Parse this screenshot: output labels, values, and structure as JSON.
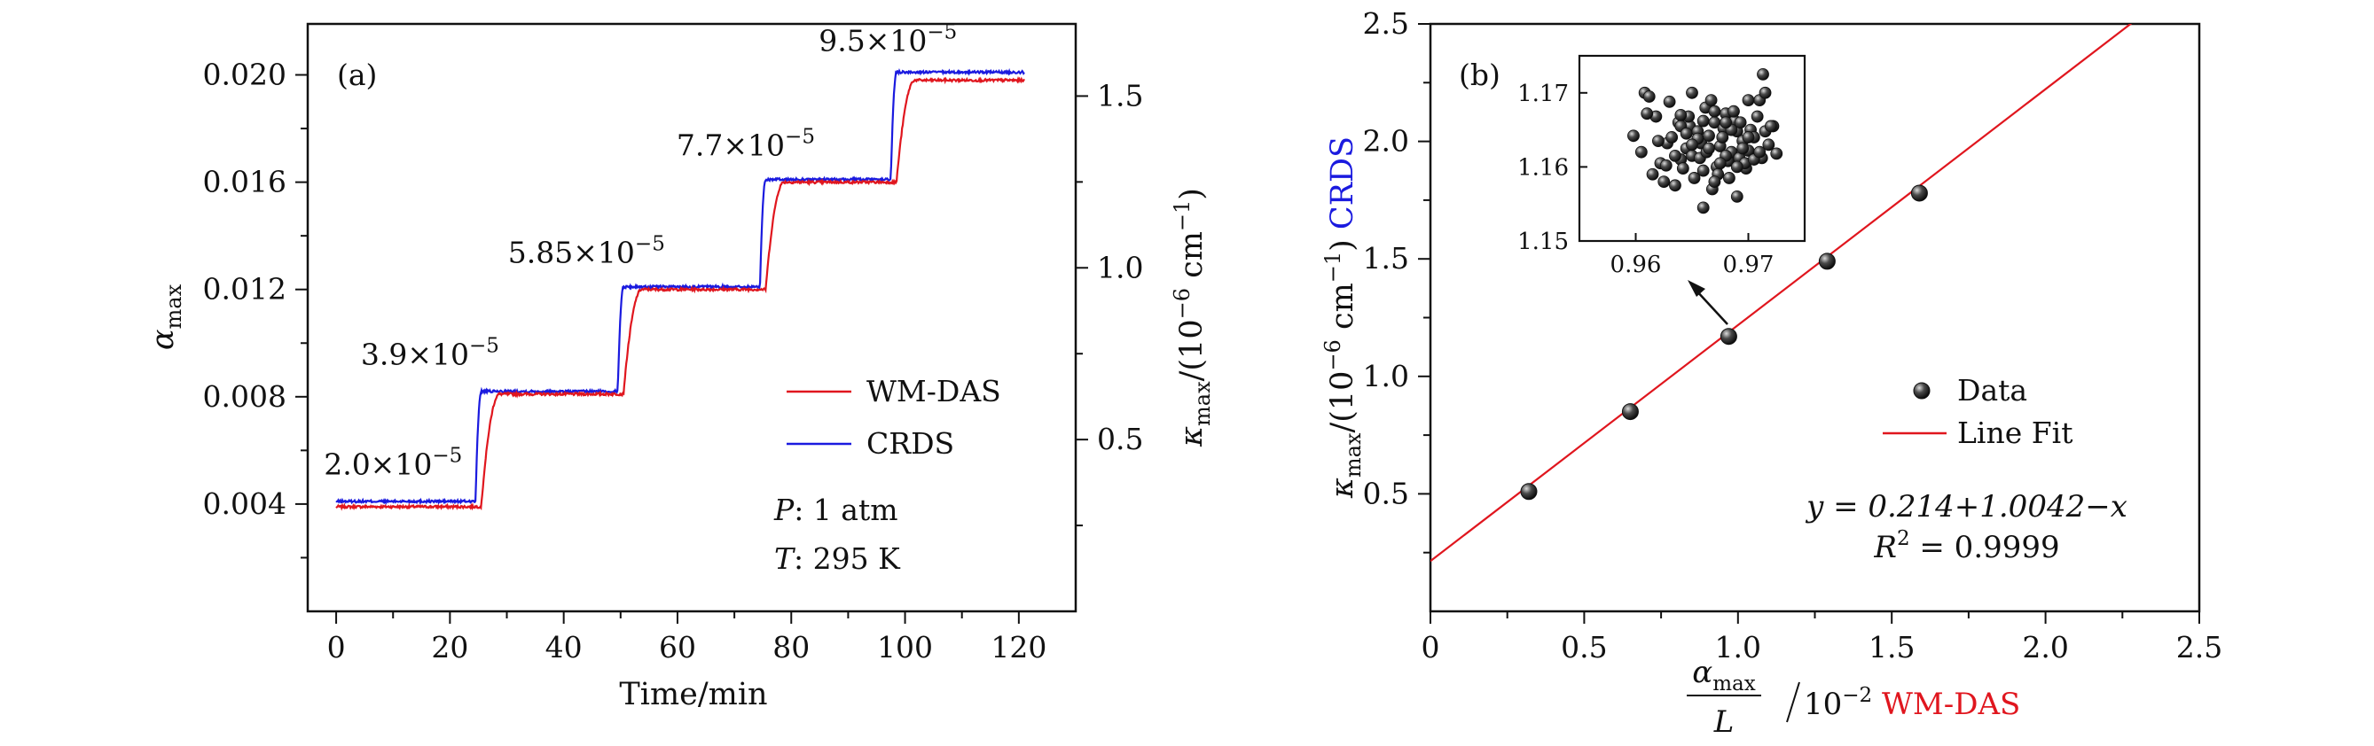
{
  "colors": {
    "red": "#e0161e",
    "blue": "#1a1adf",
    "axis": "#111111",
    "point": "#2b2b2b"
  },
  "chart_data": [
    {
      "type": "line",
      "panel_label": "(a)",
      "xlabel": "Time/min",
      "ylabel_left": {
        "base": "α",
        "sub": "max"
      },
      "ylabel_right": {
        "base": "κ",
        "sub": "max",
        "rest": "/(10",
        "exp": "−6",
        "unit": " cm",
        "unit_exp": "−1",
        "close": ")"
      },
      "xlim": [
        -5,
        130
      ],
      "ylim_left": [
        0.0,
        0.0219
      ],
      "ylim_right": [
        0.0,
        1.71
      ],
      "xticks": [
        0,
        20,
        40,
        60,
        80,
        100,
        120
      ],
      "yticks_left": [
        0.004,
        0.008,
        0.012,
        0.016,
        0.02
      ],
      "yticks_left_labels": [
        "0.004",
        "0.008",
        "0.012",
        "0.016",
        "0.020"
      ],
      "yticks_right": [
        0.5,
        1.0,
        1.5
      ],
      "yticks_right_labels": [
        "0.5",
        "1.0",
        "1.5"
      ],
      "series": [
        {
          "name": "WM-DAS",
          "color_key": "red",
          "axis": "left",
          "step_times": [
            25.5,
            50.5,
            75.5,
            98.5
          ],
          "rise_time": 3.2,
          "levels": [
            0.0039,
            0.0081,
            0.012,
            0.016,
            0.0198
          ]
        },
        {
          "name": "CRDS",
          "color_key": "blue",
          "axis": "left",
          "step_times": [
            24.5,
            49.5,
            74.5,
            97.5
          ],
          "rise_time": 1.0,
          "levels": [
            0.0041,
            0.0082,
            0.0121,
            0.0161,
            0.0201
          ]
        }
      ],
      "x_end": 121,
      "annotations": [
        {
          "mant": "2.0",
          "exp": "−5",
          "x": 10,
          "y": 0.0051
        },
        {
          "mant": "3.9",
          "exp": "−5",
          "x": 16.5,
          "y": 0.0092
        },
        {
          "mant": "5.85",
          "exp": "−5",
          "x": 44,
          "y": 0.013
        },
        {
          "mant": "7.7",
          "exp": "−5",
          "x": 72,
          "y": 0.017
        },
        {
          "mant": "9.5",
          "exp": "−5",
          "x": 97,
          "y": 0.0209
        }
      ],
      "legend_placement": "right",
      "conditions": [
        {
          "sym": "P",
          "text": ": 1 atm"
        },
        {
          "sym": "T",
          "text": ": 295 K"
        }
      ]
    },
    {
      "type": "scatter",
      "panel_label": "(b)",
      "xlabel": {
        "num_base": "α",
        "num_sub": "max",
        "den": "L",
        "rest": "/10",
        "exp": "−2",
        "method": "WM-DAS"
      },
      "ylabel": {
        "base": "κ",
        "sub": "max",
        "rest": "/(10",
        "exp": "−6",
        "unit": " cm",
        "unit_exp": "−1",
        "close": ")",
        "method": "CRDS"
      },
      "xlim": [
        0,
        2.5
      ],
      "ylim": [
        0,
        2.5
      ],
      "xticks": [
        0,
        0.5,
        1.0,
        1.5,
        2.0,
        2.5
      ],
      "xtick_labels": [
        "0",
        "0.5",
        "1.0",
        "1.5",
        "2.0",
        "2.5"
      ],
      "yticks": [
        0.5,
        1.0,
        1.5,
        2.0,
        2.5
      ],
      "ytick_labels": [
        "0.5",
        "1.0",
        "1.5",
        "2.0",
        "2.5"
      ],
      "series": [
        {
          "name": "Data",
          "x": [
            0.32,
            0.65,
            0.97,
            1.29,
            1.59
          ],
          "y": [
            0.51,
            0.85,
            1.17,
            1.49,
            1.78
          ]
        }
      ],
      "fit": {
        "name": "Line Fit",
        "intercept": 0.214,
        "slope": 1.0042
      },
      "equation": "y = 0.214+1.0042−x",
      "r2": {
        "base": "R",
        "exp": "2",
        "rest": " = 0.9999"
      },
      "legend_placement": "right",
      "inset": {
        "xlim": [
          0.955,
          0.975
        ],
        "ylim": [
          1.15,
          1.175
        ],
        "xticks": [
          0.96,
          0.97
        ],
        "xtick_labels": [
          "0.96",
          "0.97"
        ],
        "yticks": [
          1.15,
          1.16,
          1.17
        ],
        "ytick_labels": [
          "1.15",
          "1.16",
          "1.17"
        ],
        "x": [
          0.9598,
          0.9608,
          0.9612,
          0.9605,
          0.9622,
          0.9618,
          0.9625,
          0.9615,
          0.9628,
          0.961,
          0.9632,
          0.9635,
          0.964,
          0.9638,
          0.9645,
          0.9642,
          0.963,
          0.9627,
          0.9648,
          0.965,
          0.9652,
          0.9655,
          0.9647,
          0.9658,
          0.966,
          0.9662,
          0.9657,
          0.9665,
          0.9668,
          0.9663,
          0.967,
          0.9672,
          0.9667,
          0.9675,
          0.9678,
          0.9673,
          0.968,
          0.9682,
          0.9677,
          0.9685,
          0.9688,
          0.9683,
          0.969,
          0.9692,
          0.9687,
          0.9695,
          0.9698,
          0.9693,
          0.97,
          0.9702,
          0.9697,
          0.9705,
          0.9708,
          0.9712,
          0.9715,
          0.971,
          0.9718,
          0.9722,
          0.9725,
          0.9713,
          0.966,
          0.965,
          0.964,
          0.967,
          0.968,
          0.969,
          0.97,
          0.9655,
          0.9665,
          0.9675,
          0.9685,
          0.9695,
          0.9635,
          0.9645,
          0.9705,
          0.9715,
          0.962,
          0.968,
          0.969,
          0.966,
          0.965,
          0.967,
          0.964,
          0.97,
          0.971,
          0.972
        ],
        "y": [
          1.1642,
          1.17,
          1.1695,
          1.162,
          1.1605,
          1.1668,
          1.158,
          1.159,
          1.1632,
          1.1672,
          1.164,
          1.1575,
          1.161,
          1.166,
          1.1625,
          1.1598,
          1.1688,
          1.1602,
          1.1655,
          1.1615,
          1.1585,
          1.1648,
          1.1668,
          1.1632,
          1.1595,
          1.168,
          1.1612,
          1.1642,
          1.157,
          1.162,
          1.166,
          1.16,
          1.169,
          1.1628,
          1.1652,
          1.159,
          1.1672,
          1.1608,
          1.164,
          1.162,
          1.1662,
          1.1585,
          1.1648,
          1.1612,
          1.1675,
          1.1635,
          1.1598,
          1.166,
          1.1622,
          1.165,
          1.1605,
          1.164,
          1.1668,
          1.1612,
          1.1648,
          1.169,
          1.163,
          1.1655,
          1.1618,
          1.1725,
          1.1545,
          1.17,
          1.1655,
          1.1675,
          1.1615,
          1.156,
          1.169,
          1.1638,
          1.1625,
          1.1605,
          1.165,
          1.1625,
          1.1615,
          1.1645,
          1.161,
          1.17,
          1.1635,
          1.166,
          1.16,
          1.1662,
          1.163,
          1.158,
          1.167,
          1.164,
          1.162,
          1.1655
        ]
      }
    }
  ]
}
